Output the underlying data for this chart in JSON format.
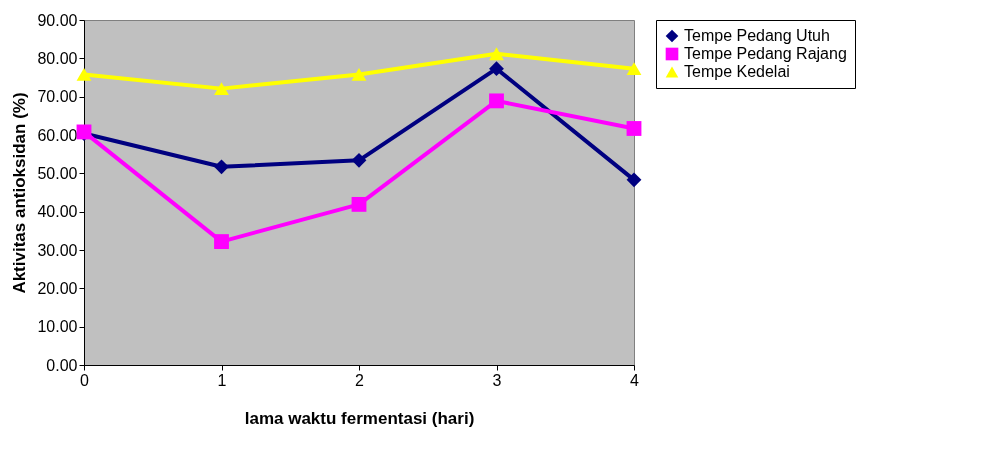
{
  "chart_data": {
    "type": "line",
    "xlabel": "lama waktu fermentasi (hari)",
    "ylabel": "Aktivitas antioksidan (%)",
    "x": [
      0,
      1,
      2,
      3,
      4
    ],
    "xlim": [
      0,
      4
    ],
    "xticks": [
      0,
      1,
      2,
      3,
      4
    ],
    "ylim": [
      0,
      90
    ],
    "yticks": [
      {
        "value": 0,
        "label": "0.00"
      },
      {
        "value": 10,
        "label": "10.00"
      },
      {
        "value": 20,
        "label": "20.00"
      },
      {
        "value": 30,
        "label": "30.00"
      },
      {
        "value": 40,
        "label": "40.00"
      },
      {
        "value": 50,
        "label": "50.00"
      },
      {
        "value": 60,
        "label": "60.00"
      },
      {
        "value": 70,
        "label": "70.00"
      },
      {
        "value": 80,
        "label": "80.00"
      },
      {
        "value": 90,
        "label": "90.00"
      }
    ],
    "grid": false,
    "legend": "right",
    "line_style": "solid",
    "series": [
      {
        "name": "Tempe Pedang Utuh",
        "color": "#000080",
        "marker": "diamond",
        "values": [
          60.4,
          51.7,
          53.4,
          77.3,
          48.3
        ]
      },
      {
        "name": "Tempe Pedang Rajang",
        "color": "#ff00ff",
        "marker": "square",
        "values": [
          60.8,
          32.2,
          41.9,
          68.9,
          61.7
        ]
      },
      {
        "name": "Tempe Kedelai",
        "color": "#ffff00",
        "marker": "triangle",
        "values": [
          75.8,
          72.1,
          75.8,
          81.2,
          77.3
        ]
      }
    ]
  }
}
